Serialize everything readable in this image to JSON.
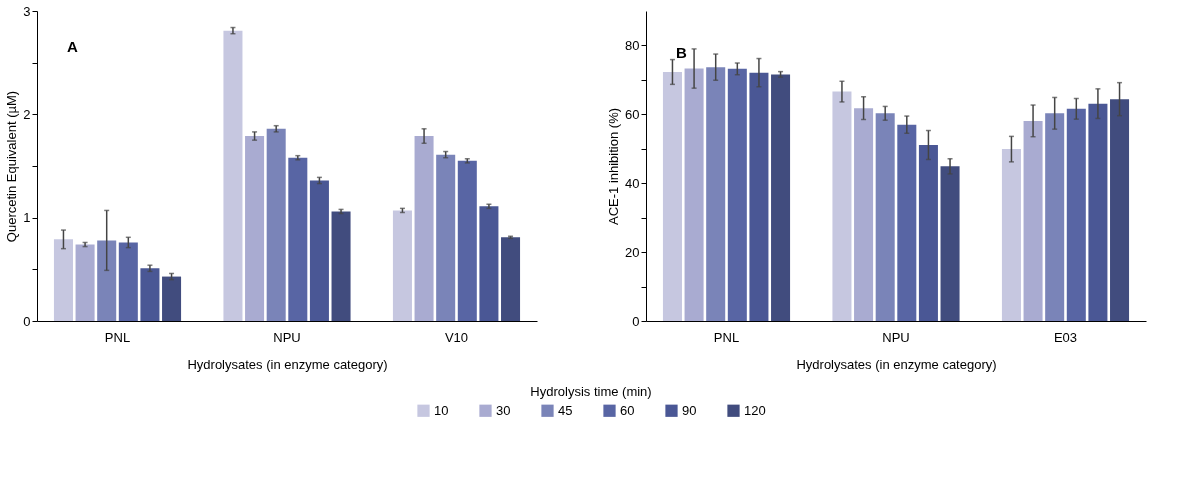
{
  "chart_data": [
    {
      "type": "bar",
      "title": "A",
      "xlabel": "Hydrolysates (in enzyme category)",
      "ylabel": "Quercetin Equivalent (µM)",
      "legend_title": "Hydrolysis time (min)",
      "legend": "bottom",
      "grid": false,
      "categories": [
        "PNL",
        "NPU",
        "V10"
      ],
      "ylim": [
        0,
        3
      ],
      "yticks": [
        0,
        {
          "value": 0.5,
          "label": null
        },
        1,
        {
          "value": 1.5,
          "label": null
        },
        2,
        {
          "value": 2.5,
          "label": null
        },
        3
      ],
      "series": [
        {
          "name": "10",
          "color": "#c6c7e0",
          "values": [
            0.79,
            2.81,
            1.07
          ],
          "errors": [
            0.09,
            0.03,
            0.02
          ]
        },
        {
          "name": "30",
          "color": "#a9abd1",
          "values": [
            0.74,
            1.79,
            1.79
          ],
          "errors": [
            0.02,
            0.04,
            0.07
          ]
        },
        {
          "name": "45",
          "color": "#7a84b8",
          "values": [
            0.78,
            1.86,
            1.61
          ],
          "errors": [
            0.29,
            0.03,
            0.03
          ]
        },
        {
          "name": "60",
          "color": "#5865a4",
          "values": [
            0.76,
            1.58,
            1.55
          ],
          "errors": [
            0.05,
            0.02,
            0.02
          ]
        },
        {
          "name": "90",
          "color": "#4a5795",
          "values": [
            0.51,
            1.36,
            1.11
          ],
          "errors": [
            0.03,
            0.03,
            0.02
          ]
        },
        {
          "name": "120",
          "color": "#414c7e",
          "values": [
            0.43,
            1.06,
            0.81
          ],
          "errors": [
            0.03,
            0.02,
            0.01
          ]
        }
      ]
    },
    {
      "type": "bar",
      "title": "B",
      "xlabel": "Hydrolysates (in enzyme category)",
      "ylabel": "ACE-1 inhibition (%)",
      "grid": false,
      "categories": [
        "PNL",
        "NPU",
        "E03"
      ],
      "ylim": [
        0,
        90
      ],
      "yticks": [
        0,
        {
          "value": 10,
          "label": null
        },
        20,
        {
          "value": 30,
          "label": null
        },
        40,
        {
          "value": 50,
          "label": null
        },
        60,
        {
          "value": 70,
          "label": null
        },
        80
      ],
      "series": [
        {
          "name": "10",
          "color": "#c6c7e0",
          "values": [
            72.3,
            66.6,
            49.9
          ],
          "errors": [
            3.6,
            3.0,
            3.7
          ]
        },
        {
          "name": "30",
          "color": "#a9abd1",
          "values": [
            73.3,
            61.8,
            58.1
          ],
          "errors": [
            5.7,
            3.3,
            4.6
          ]
        },
        {
          "name": "45",
          "color": "#7a84b8",
          "values": [
            73.7,
            60.3,
            60.3
          ],
          "errors": [
            3.8,
            2.0,
            4.6
          ]
        },
        {
          "name": "60",
          "color": "#5865a4",
          "values": [
            73.2,
            57.0,
            61.6
          ],
          "errors": [
            1.7,
            2.5,
            3.0
          ]
        },
        {
          "name": "90",
          "color": "#4a5795",
          "values": [
            72.1,
            51.1,
            63.1
          ],
          "errors": [
            4.1,
            4.2,
            4.3
          ]
        },
        {
          "name": "120",
          "color": "#414c7e",
          "values": [
            71.6,
            44.9,
            64.4
          ],
          "errors": [
            0.8,
            2.2,
            4.8
          ]
        }
      ]
    }
  ]
}
